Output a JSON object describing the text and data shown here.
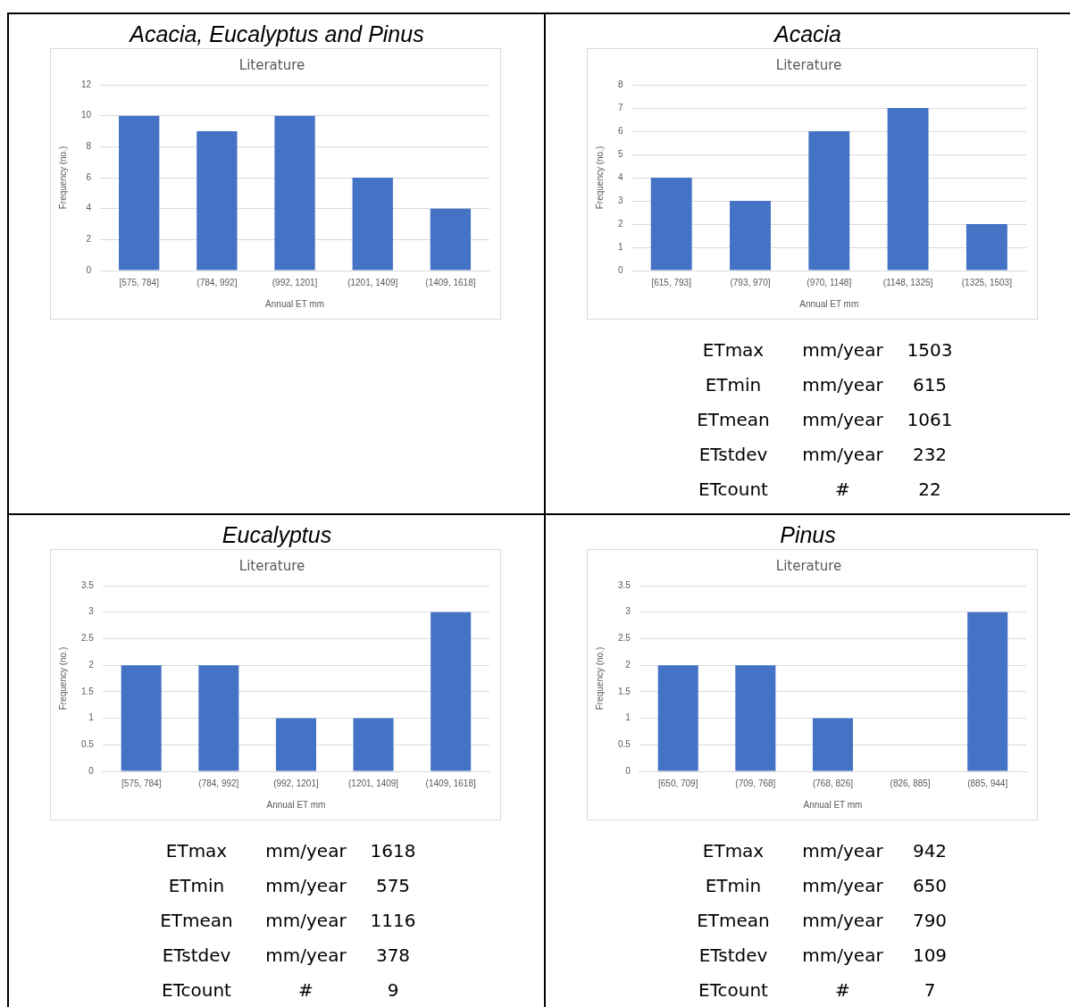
{
  "chart_data": [
    {
      "type": "bar",
      "title": "Acacia, Eucalyptus and Pinus",
      "subtitle": "Literature",
      "xlabel": "Annual ET mm",
      "ylabel": "Frequency (no.)",
      "categories": [
        "[575, 784]",
        "(784, 992]",
        "(992, 1201]",
        "(1201, 1409]",
        "(1409, 1618]"
      ],
      "values": [
        10,
        9,
        10,
        6,
        4
      ],
      "color": "#4472c4",
      "ylim": [
        0,
        12
      ],
      "yticks": [
        0,
        2,
        4,
        6,
        8,
        10,
        12
      ],
      "grid": "y"
    },
    {
      "type": "bar",
      "title": "Acacia",
      "subtitle": "Literature",
      "xlabel": "Annual ET mm",
      "ylabel": "Frequency (no.)",
      "categories": [
        "[615, 793]",
        "(793, 970]",
        "(970, 1148]",
        "(1148, 1325]",
        "(1325, 1503]"
      ],
      "values": [
        4,
        3,
        6,
        7,
        2
      ],
      "color": "#4472c4",
      "ylim": [
        0,
        8
      ],
      "yticks": [
        0,
        1,
        2,
        3,
        4,
        5,
        6,
        7,
        8
      ],
      "grid": "y",
      "annotations": [
        "ETmax",
        "mm/year",
        "1503",
        "ETmin",
        "mm/year",
        "615",
        "ETmean",
        "mm/year",
        "1061",
        "ETstdev",
        "mm/year",
        "232",
        "ETcount",
        "#",
        "22"
      ]
    },
    {
      "type": "bar",
      "title": "Eucalyptus",
      "subtitle": "Literature",
      "xlabel": "Annual ET mm",
      "ylabel": "Frequency (no.)",
      "categories": [
        "[575, 784]",
        "(784, 992]",
        "(992, 1201]",
        "(1201, 1409]",
        "(1409, 1618]"
      ],
      "values": [
        2,
        2,
        1,
        1,
        3
      ],
      "color": "#4472c4",
      "ylim": [
        0,
        3.5
      ],
      "yticks": [
        0,
        0.5,
        1,
        1.5,
        2,
        2.5,
        3,
        3.5
      ],
      "grid": "y",
      "annotations": [
        "ETmax",
        "mm/year",
        "1618",
        "ETmin",
        "mm/year",
        "575",
        "ETmean",
        "mm/year",
        "1116",
        "ETstdev",
        "mm/year",
        "378",
        "ETcount",
        "#",
        "9"
      ]
    },
    {
      "type": "bar",
      "title": "Pinus",
      "subtitle": "Literature",
      "xlabel": "Annual ET mm",
      "ylabel": "Frequency (no.)",
      "categories": [
        "[650, 709]",
        "(709, 768]",
        "(768, 826]",
        "(826, 885]",
        "(885, 944]"
      ],
      "values": [
        2,
        2,
        1,
        0,
        3
      ],
      "color": "#4472c4",
      "ylim": [
        0,
        3.5
      ],
      "yticks": [
        0,
        0.5,
        1,
        1.5,
        2,
        2.5,
        3,
        3.5
      ],
      "grid": "y",
      "annotations": [
        "ETmax",
        "mm/year",
        "942",
        "ETmin",
        "mm/year",
        "650",
        "ETmean",
        "mm/year",
        "790",
        "ETstdev",
        "mm/year",
        "109",
        "ETcount",
        "#",
        "7"
      ]
    }
  ]
}
